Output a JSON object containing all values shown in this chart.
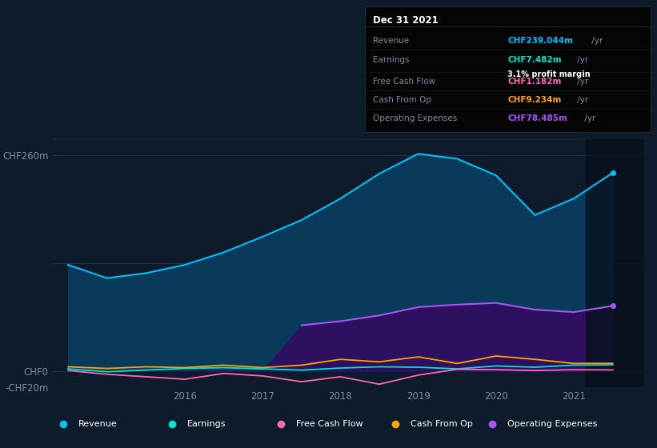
{
  "bg_color": "#0d1b2a",
  "plot_bg_color": "#0d1b2a",
  "years": [
    2014.5,
    2015.0,
    2015.5,
    2016.0,
    2016.5,
    2017.0,
    2017.5,
    2018.0,
    2018.5,
    2019.0,
    2019.5,
    2020.0,
    2020.5,
    2021.0,
    2021.5
  ],
  "revenue": [
    128,
    112,
    118,
    128,
    143,
    162,
    182,
    208,
    238,
    262,
    256,
    236,
    188,
    208,
    239
  ],
  "earnings": [
    2.5,
    -1,
    1,
    3,
    4,
    2.5,
    1,
    3.5,
    5,
    4.5,
    2.5,
    6,
    4.5,
    7,
    7.5
  ],
  "free_cash_flow": [
    0.5,
    -4,
    -7,
    -10,
    -3,
    -6,
    -13,
    -7,
    -16,
    -5,
    2,
    1.5,
    0.5,
    1.5,
    1.2
  ],
  "cash_from_op": [
    5,
    3,
    5,
    4,
    7,
    4,
    7,
    14,
    11,
    17,
    9,
    18,
    14,
    9,
    9.2
  ],
  "op_expenses": [
    0,
    0,
    0,
    0,
    0,
    0,
    55,
    60,
    67,
    77,
    80,
    82,
    74,
    71,
    78.5
  ],
  "revenue_color": "#00bfff",
  "earnings_color": "#00e5cc",
  "free_cash_flow_color": "#ff69b4",
  "cash_from_op_color": "#ffa500",
  "op_expenses_color": "#a855f7",
  "revenue_fill": "#0a3a5a",
  "op_expenses_fill": "#2d1060",
  "ylim": [
    -20,
    280
  ],
  "ylim_display": [
    -20,
    260
  ],
  "grid_color": "#1a3a5c",
  "tick_color": "#7a8fa0",
  "xtick_years": [
    2016,
    2017,
    2018,
    2019,
    2020,
    2021
  ],
  "info_box": {
    "title": "Dec 31 2021",
    "rows": [
      {
        "label": "Revenue",
        "value": "CHF239.044m",
        "value_color": "#00bfff",
        "suffix": " /yr",
        "extra": null
      },
      {
        "label": "Earnings",
        "value": "CHF7.482m",
        "value_color": "#00e5cc",
        "suffix": " /yr",
        "extra": "3.1% profit margin"
      },
      {
        "label": "Free Cash Flow",
        "value": "CHF1.182m",
        "value_color": "#ff69b4",
        "suffix": " /yr",
        "extra": null
      },
      {
        "label": "Cash From Op",
        "value": "CHF9.234m",
        "value_color": "#ffa500",
        "suffix": " /yr",
        "extra": null
      },
      {
        "label": "Operating Expenses",
        "value": "CHF78.485m",
        "value_color": "#a855f7",
        "suffix": " /yr",
        "extra": null
      }
    ]
  },
  "legend_entries": [
    {
      "label": "Revenue",
      "color": "#00bfff"
    },
    {
      "label": "Earnings",
      "color": "#00e5cc"
    },
    {
      "label": "Free Cash Flow",
      "color": "#ff69b4"
    },
    {
      "label": "Cash From Op",
      "color": "#ffa500"
    },
    {
      "label": "Operating Expenses",
      "color": "#a855f7"
    }
  ],
  "figsize": [
    8.21,
    5.6
  ],
  "dpi": 100
}
